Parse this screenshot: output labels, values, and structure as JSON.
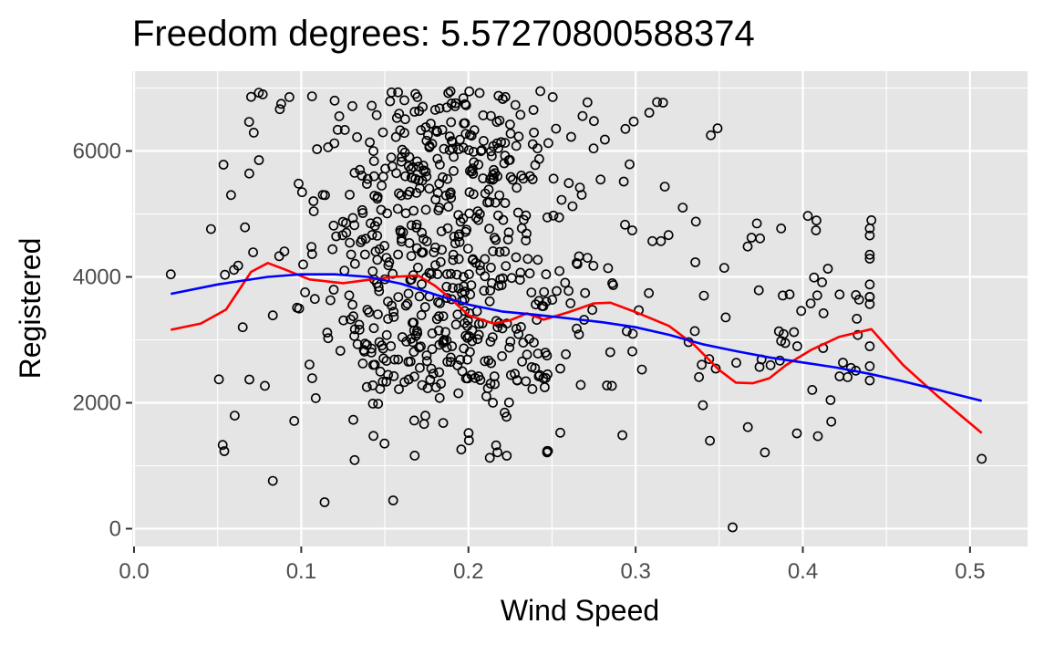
{
  "chart_data": {
    "type": "scatter",
    "title": "Freedom degrees: 5.57270800588374",
    "xlabel": "Wind Speed",
    "ylabel": "Registered",
    "xlim": [
      0.0,
      0.525
    ],
    "ylim": [
      -150,
      7100
    ],
    "xticks": [
      0.0,
      0.1,
      0.2,
      0.3,
      0.4,
      0.5
    ],
    "xtick_labels": [
      "0.0",
      "0.1",
      "0.2",
      "0.3",
      "0.4",
      "0.5"
    ],
    "yticks": [
      0,
      2000,
      4000,
      6000
    ],
    "ytick_labels": [
      "0",
      "2000",
      "4000",
      "6000"
    ],
    "grid": true,
    "background": "#e5e5e5",
    "grid_color": "#ffffff",
    "point_count_approx": 730,
    "point_marker": "open-circle",
    "point_color": "#000000",
    "points_sample": [
      {
        "x": 0.022,
        "y": 4040
      },
      {
        "x": 0.046,
        "y": 4760
      },
      {
        "x": 0.058,
        "y": 5300
      },
      {
        "x": 0.07,
        "y": 6860
      },
      {
        "x": 0.077,
        "y": 6900
      },
      {
        "x": 0.088,
        "y": 6750
      },
      {
        "x": 0.12,
        "y": 6800
      },
      {
        "x": 0.154,
        "y": 6930
      },
      {
        "x": 0.188,
        "y": 6920
      },
      {
        "x": 0.243,
        "y": 6950
      },
      {
        "x": 0.349,
        "y": 6360
      },
      {
        "x": 0.345,
        "y": 6250
      },
      {
        "x": 0.441,
        "y": 4900
      },
      {
        "x": 0.387,
        "y": 4770
      },
      {
        "x": 0.415,
        "y": 4130
      },
      {
        "x": 0.399,
        "y": 3460
      },
      {
        "x": 0.422,
        "y": 3720
      },
      {
        "x": 0.422,
        "y": 2420
      },
      {
        "x": 0.417,
        "y": 1700
      },
      {
        "x": 0.409,
        "y": 1470
      },
      {
        "x": 0.507,
        "y": 1110
      },
      {
        "x": 0.358,
        "y": 22
      },
      {
        "x": 0.114,
        "y": 420
      },
      {
        "x": 0.155,
        "y": 450
      },
      {
        "x": 0.053,
        "y": 1330
      },
      {
        "x": 0.083,
        "y": 760
      },
      {
        "x": 0.069,
        "y": 2370
      },
      {
        "x": 0.065,
        "y": 3200
      }
    ],
    "series": [
      {
        "name": "",
        "type": "line",
        "color": "#ff0000",
        "x": [
          0.022,
          0.04,
          0.055,
          0.07,
          0.08,
          0.09,
          0.105,
          0.125,
          0.145,
          0.155,
          0.17,
          0.18,
          0.19,
          0.2,
          0.215,
          0.225,
          0.235,
          0.245,
          0.26,
          0.275,
          0.285,
          0.3,
          0.32,
          0.335,
          0.35,
          0.36,
          0.37,
          0.38,
          0.39,
          0.405,
          0.422,
          0.441,
          0.46,
          0.48,
          0.507
        ],
        "y": [
          3160,
          3260,
          3480,
          4080,
          4220,
          4120,
          3960,
          3900,
          3970,
          4000,
          4020,
          3860,
          3640,
          3390,
          3260,
          3310,
          3420,
          3320,
          3440,
          3580,
          3590,
          3440,
          3220,
          2920,
          2520,
          2320,
          2310,
          2390,
          2600,
          2840,
          3050,
          3170,
          2600,
          2120,
          1520
        ]
      },
      {
        "name": "",
        "type": "line",
        "color": "#0000ff",
        "x": [
          0.022,
          0.05,
          0.08,
          0.1,
          0.12,
          0.14,
          0.16,
          0.18,
          0.2,
          0.22,
          0.24,
          0.26,
          0.28,
          0.3,
          0.32,
          0.34,
          0.36,
          0.38,
          0.4,
          0.42,
          0.44,
          0.46,
          0.48,
          0.507
        ],
        "y": [
          3730,
          3880,
          4000,
          4040,
          4040,
          4000,
          3890,
          3720,
          3560,
          3450,
          3400,
          3340,
          3280,
          3200,
          3080,
          2930,
          2820,
          2720,
          2640,
          2560,
          2460,
          2340,
          2210,
          2030
        ]
      }
    ]
  }
}
